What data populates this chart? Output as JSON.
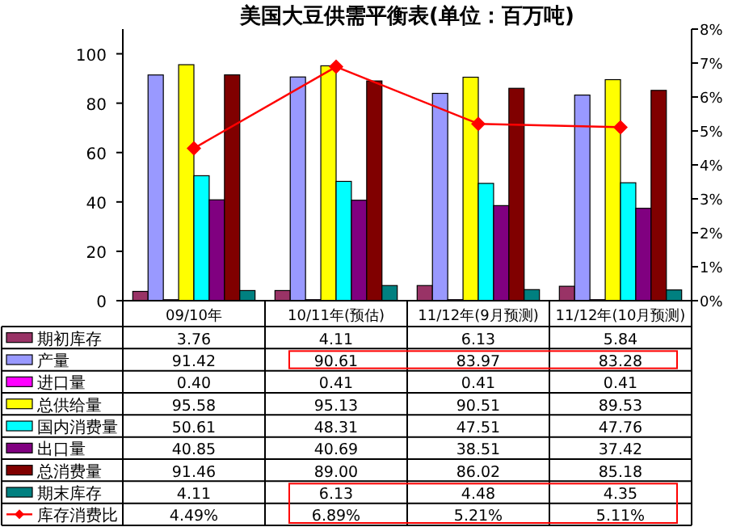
{
  "chart_data": {
    "type": "bar",
    "title": "美国大豆供需平衡表(单位：百万吨)",
    "categories": [
      "09/10年",
      "10/11年(预估)",
      "11/12年(9月预测)",
      "11/12年(10月预测)"
    ],
    "ylim": [
      0,
      110
    ],
    "yticks": [
      0,
      20,
      40,
      60,
      80,
      100
    ],
    "y2lim": [
      0,
      8
    ],
    "y2ticks": [
      {
        "value": 0,
        "label": "0%"
      },
      {
        "value": 1,
        "label": "1%"
      },
      {
        "value": 2,
        "label": "2%"
      },
      {
        "value": 3,
        "label": "3%"
      },
      {
        "value": 4,
        "label": "4%"
      },
      {
        "value": 5,
        "label": "5%"
      },
      {
        "value": 6,
        "label": "6%"
      },
      {
        "value": 7,
        "label": "7%"
      },
      {
        "value": 8,
        "label": "8%"
      }
    ],
    "grid": false,
    "legend": "bottom",
    "series": [
      {
        "name": "期初库存",
        "color": "#993366",
        "values": [
          3.76,
          4.11,
          6.13,
          5.84
        ],
        "value_labels": [
          "3.76",
          "4.11",
          "6.13",
          "5.84"
        ]
      },
      {
        "name": "产量",
        "color": "#9999ff",
        "values": [
          91.42,
          90.61,
          83.97,
          83.28
        ],
        "value_labels": [
          "91.42",
          "90.61",
          "83.97",
          "83.28"
        ]
      },
      {
        "name": "进口量",
        "color": "#ff00ff",
        "values": [
          0.4,
          0.41,
          0.41,
          0.41
        ],
        "value_labels": [
          "0.40",
          "0.41",
          "0.41",
          "0.41"
        ]
      },
      {
        "name": "总供给量",
        "color": "#ffff00",
        "values": [
          95.58,
          95.13,
          90.51,
          89.53
        ],
        "value_labels": [
          "95.58",
          "95.13",
          "90.51",
          "89.53"
        ]
      },
      {
        "name": "国内消费量",
        "color": "#00ffff",
        "values": [
          50.61,
          48.31,
          47.51,
          47.76
        ],
        "value_labels": [
          "50.61",
          "48.31",
          "47.51",
          "47.76"
        ]
      },
      {
        "name": "出口量",
        "color": "#800080",
        "values": [
          40.85,
          40.69,
          38.51,
          37.42
        ],
        "value_labels": [
          "40.85",
          "40.69",
          "38.51",
          "37.42"
        ]
      },
      {
        "name": "总消费量",
        "color": "#800000",
        "values": [
          91.46,
          89.0,
          86.02,
          85.18
        ],
        "value_labels": [
          "91.46",
          "89.00",
          "86.02",
          "85.18"
        ]
      },
      {
        "name": "期末库存",
        "color": "#008080",
        "values": [
          4.11,
          6.13,
          4.48,
          4.35
        ],
        "value_labels": [
          "4.11",
          "6.13",
          "4.48",
          "4.35"
        ]
      },
      {
        "name": "库存消费比",
        "type": "line",
        "axis": "y2",
        "color": "#ff0000",
        "marker": "diamond",
        "values": [
          4.49,
          6.89,
          5.21,
          5.11
        ],
        "value_labels": [
          "4.49%",
          "6.89%",
          "5.21%",
          "5.11%"
        ]
      }
    ]
  }
}
